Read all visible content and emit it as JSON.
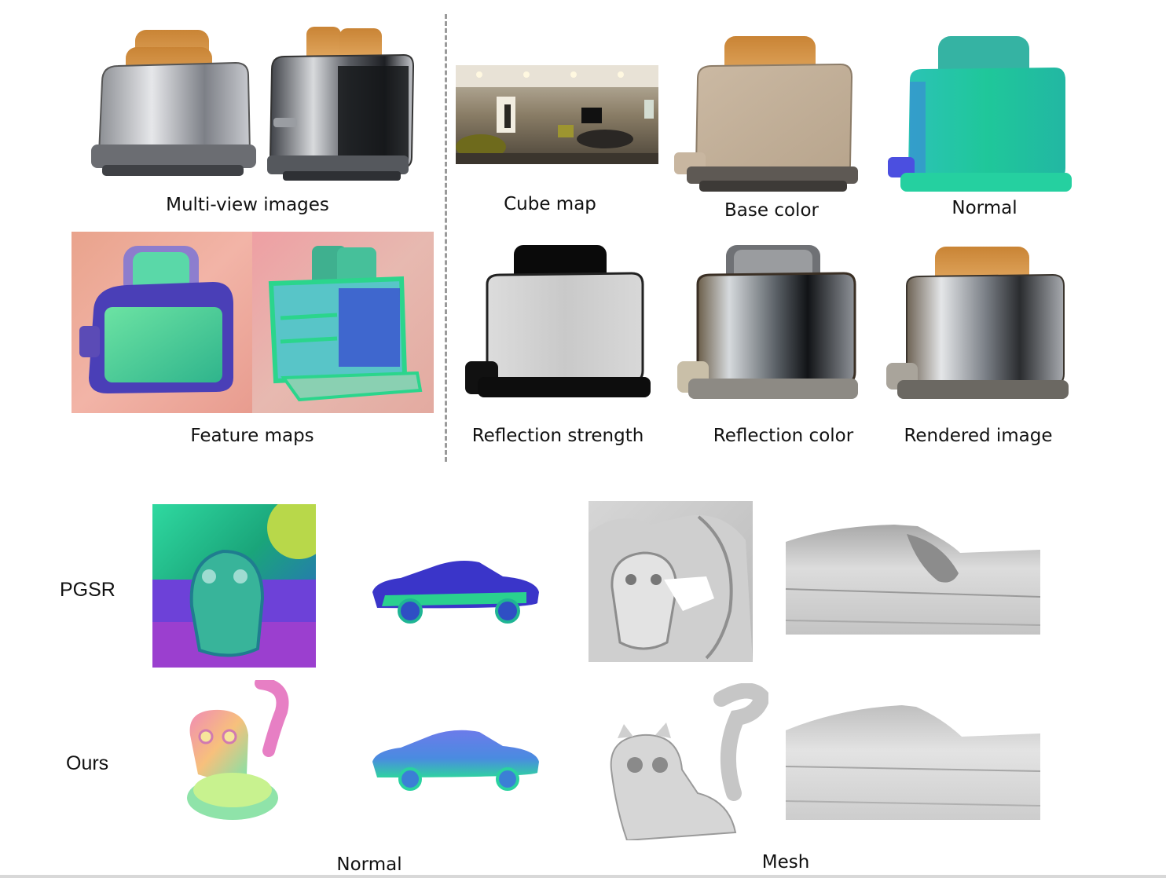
{
  "captions": {
    "multiview": "Multi-view images",
    "cubemap": "Cube map",
    "basecolor": "Base color",
    "normal_top": "Normal",
    "feature": "Feature maps",
    "reflstrength": "Reflection strength",
    "reflcolor": "Reflection color",
    "rendered": "Rendered image",
    "normal_bottom": "Normal",
    "mesh": "Mesh"
  },
  "row_labels": {
    "pgsr": "PGSR",
    "ours": "Ours"
  },
  "colors": {
    "divider": "#9a9a9a",
    "normal_green": "#1fc79a",
    "chrome": "#b9bcc2",
    "toast": "#d9913e",
    "mesh_gray": "#cfcfcf"
  }
}
